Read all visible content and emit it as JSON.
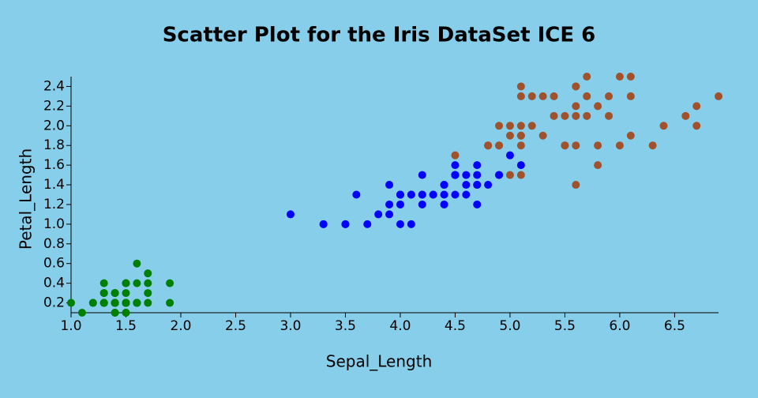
{
  "chart_data": {
    "type": "scatter",
    "title": "Scatter Plot for the Iris DataSet ICE 6",
    "x_label": "Sepal_Length",
    "y_label": "Petal_Length",
    "xlim": [
      1.0,
      6.9
    ],
    "ylim": [
      0.1,
      2.5
    ],
    "xticks": [
      {
        "value": 1,
        "label": "1.0"
      },
      1.5,
      {
        "value": 2,
        "label": "2.0"
      },
      2.5,
      {
        "value": 3,
        "label": "3.0"
      },
      3.5,
      {
        "value": 4,
        "label": "4.0"
      },
      4.5,
      {
        "value": 5,
        "label": "5.0"
      },
      5.5,
      {
        "value": 6,
        "label": "6.0"
      },
      6.5
    ],
    "yticks": [
      0.2,
      0.4,
      0.6,
      0.8,
      {
        "value": 1,
        "label": "1.0"
      },
      1.2,
      1.4,
      1.6,
      1.8,
      {
        "value": 2,
        "label": "2.0"
      },
      2.2,
      2.4
    ],
    "series": [
      {
        "color": "#008000",
        "x": [
          1.4,
          1.4,
          1.3,
          1.5,
          1.4,
          1.7,
          1.4,
          1.5,
          1.4,
          1.5,
          1.5,
          1.6,
          1.4,
          1.1,
          1.2,
          1.5,
          1.3,
          1.4,
          1.7,
          1.5,
          1.7,
          1.5,
          1.0,
          1.7,
          1.9,
          1.6,
          1.6,
          1.5,
          1.4,
          1.6,
          1.6,
          1.5,
          1.5,
          1.4,
          1.5,
          1.2,
          1.3,
          1.4,
          1.3,
          1.5,
          1.3,
          1.3,
          1.3,
          1.6,
          1.9,
          1.4,
          1.6,
          1.4,
          1.5,
          1.4
        ],
        "values": [
          0.2,
          0.2,
          0.2,
          0.2,
          0.2,
          0.4,
          0.3,
          0.2,
          0.2,
          0.1,
          0.2,
          0.2,
          0.1,
          0.1,
          0.2,
          0.4,
          0.4,
          0.3,
          0.3,
          0.3,
          0.2,
          0.4,
          0.2,
          0.5,
          0.2,
          0.2,
          0.4,
          0.2,
          0.2,
          0.2,
          0.2,
          0.4,
          0.1,
          0.2,
          0.2,
          0.2,
          0.2,
          0.1,
          0.2,
          0.2,
          0.3,
          0.3,
          0.2,
          0.6,
          0.4,
          0.3,
          0.2,
          0.2,
          0.2,
          0.2
        ]
      },
      {
        "color": "#0000ff",
        "x": [
          4.7,
          4.5,
          4.9,
          4.0,
          4.6,
          4.5,
          4.7,
          3.3,
          4.6,
          3.9,
          3.5,
          4.2,
          4.0,
          4.7,
          3.6,
          4.4,
          4.5,
          4.1,
          4.5,
          3.9,
          4.0,
          4.9,
          4.7,
          4.3,
          4.4,
          4.8,
          5.0,
          4.5,
          3.5,
          3.8,
          3.7,
          3.9,
          5.1,
          4.5,
          4.5,
          4.7,
          4.4,
          4.1,
          4.0,
          4.4,
          4.6,
          4.0,
          3.3,
          4.2,
          4.2,
          4.2,
          4.3,
          3.0,
          4.1
        ],
        "values": [
          1.4,
          1.5,
          1.5,
          1.3,
          1.5,
          1.3,
          1.6,
          1.0,
          1.3,
          1.4,
          1.0,
          1.5,
          1.0,
          1.4,
          1.3,
          1.4,
          1.5,
          1.0,
          1.5,
          1.1,
          1.3,
          1.5,
          1.2,
          1.3,
          1.4,
          1.4,
          1.7,
          1.5,
          1.0,
          1.1,
          1.0,
          1.2,
          1.6,
          1.5,
          1.6,
          1.5,
          1.3,
          1.3,
          1.3,
          1.2,
          1.4,
          1.2,
          1.0,
          1.3,
          1.2,
          1.3,
          1.3,
          1.1,
          1.3
        ]
      },
      {
        "color": "#a0522d",
        "x": [
          6.0,
          5.1,
          5.9,
          5.6,
          5.8,
          6.6,
          4.5,
          6.3,
          5.8,
          6.1,
          5.1,
          5.3,
          5.5,
          5.0,
          5.1,
          5.3,
          5.5,
          6.7,
          6.9,
          5.0,
          5.7,
          4.9,
          6.7,
          4.9,
          5.7,
          6.0,
          4.8,
          4.9,
          5.6,
          5.8,
          6.1,
          6.4,
          5.6,
          5.1,
          5.6,
          6.1,
          5.6,
          5.5,
          4.8,
          5.4,
          5.6,
          5.1,
          5.1,
          5.9,
          5.7,
          5.2,
          5.0,
          5.2,
          5.4,
          5.1,
          4.8
        ],
        "values": [
          2.5,
          1.9,
          2.1,
          1.8,
          2.2,
          2.1,
          1.7,
          1.8,
          1.8,
          2.5,
          2.0,
          1.9,
          2.1,
          2.0,
          2.4,
          2.3,
          1.8,
          2.2,
          2.3,
          1.5,
          2.3,
          2.0,
          2.0,
          1.8,
          2.1,
          1.8,
          1.8,
          1.8,
          2.1,
          1.6,
          1.9,
          2.0,
          2.2,
          1.5,
          1.4,
          2.3,
          2.4,
          1.8,
          1.8,
          2.1,
          2.4,
          2.3,
          1.9,
          2.3,
          2.5,
          2.3,
          1.9,
          2.0,
          2.3,
          1.8,
          1.8
        ]
      }
    ]
  }
}
